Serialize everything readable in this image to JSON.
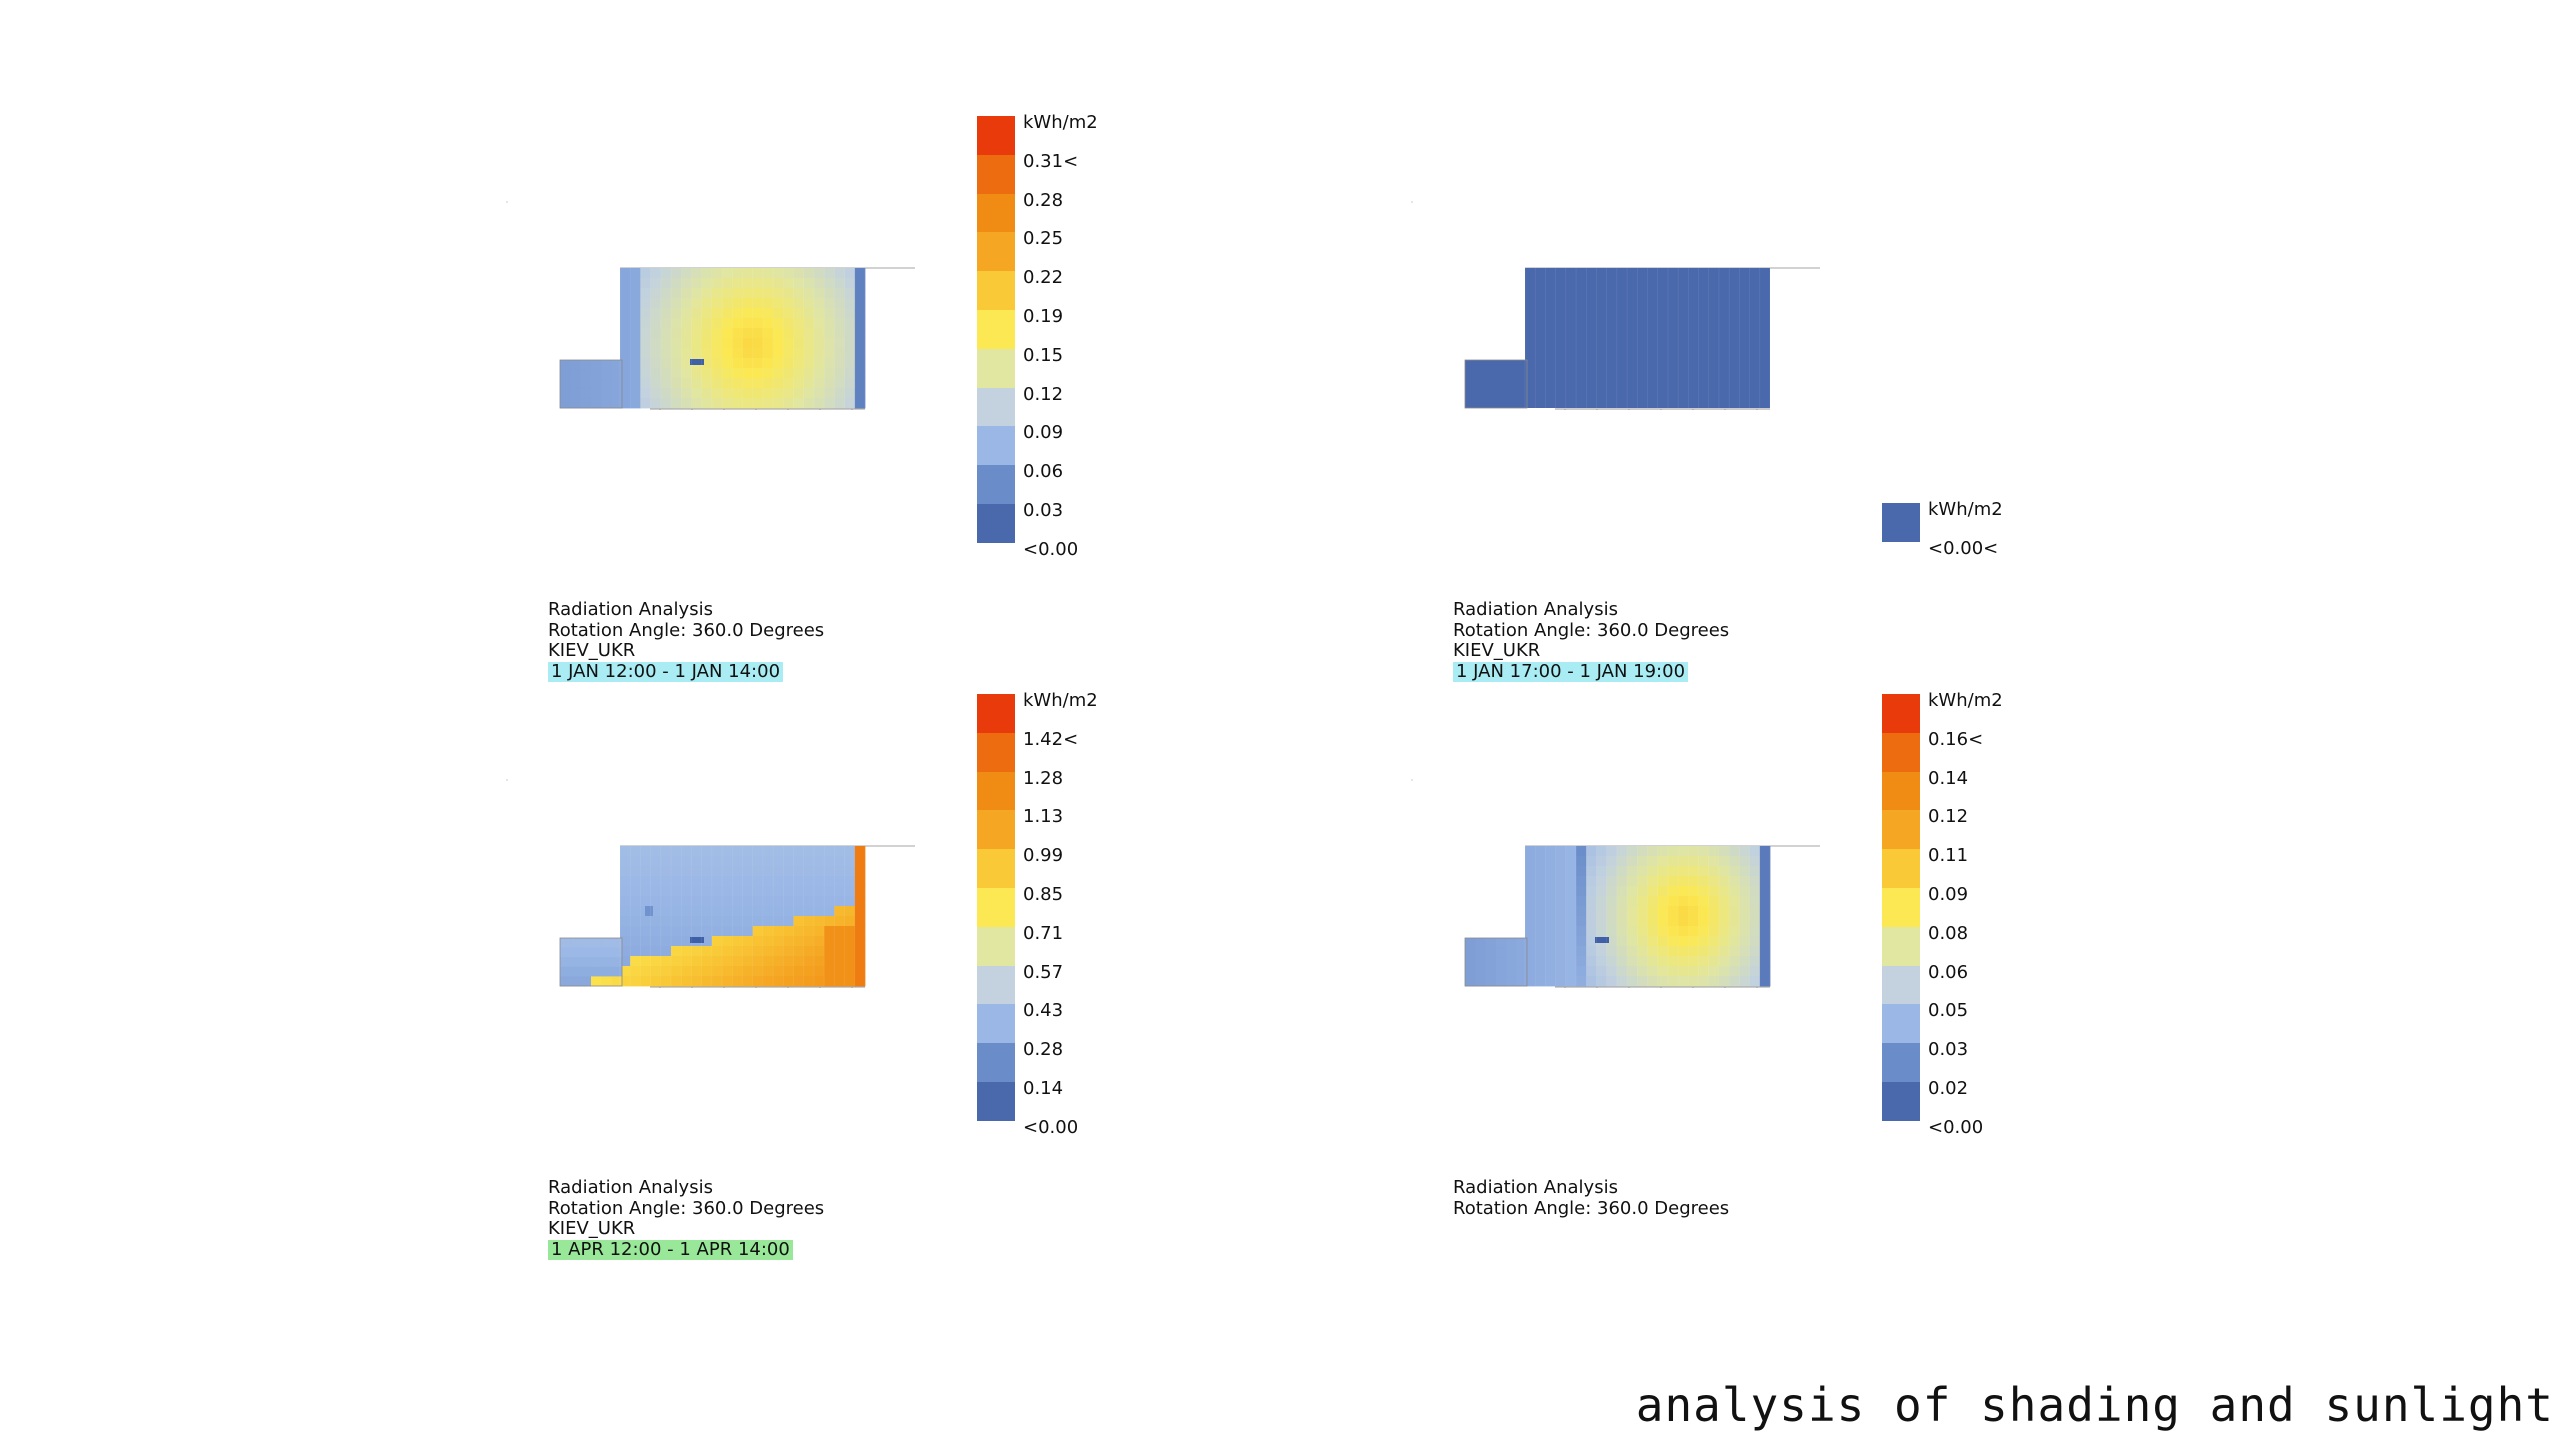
{
  "palette": {
    "scale": [
      "#4a68ac",
      "#6a8cc9",
      "#9ab7e6",
      "#c3d2de",
      "#e1e6a0",
      "#fbe852",
      "#f9c937",
      "#f5a623",
      "#f08c14",
      "#ec6c0f",
      "#e93a0c"
    ],
    "base_blue": "#4a68ac",
    "mid_blue": "#86a7db",
    "yellow": "#f3e04d",
    "orange": "#ee8c1c",
    "highlight_cyan": "#a9ecf3",
    "highlight_green": "#99e899"
  },
  "panels": [
    {
      "id": "jan-midday",
      "legend": {
        "unit": "kWh/m2",
        "labels": [
          "0.31<",
          "0.28",
          "0.25",
          "0.22",
          "0.19",
          "0.15",
          "0.12",
          "0.09",
          "0.06",
          "0.03",
          "<0.00"
        ],
        "steps": 11
      },
      "caption": {
        "title": "Radiation Analysis",
        "rotation": "Rotation Angle: 360.0 Degrees",
        "location": "KIEV_UKR",
        "period": "1 JAN 12:00 - 1 JAN 14:00",
        "period_highlight": "#a9ecf3"
      },
      "pattern": "jan"
    },
    {
      "id": "jan-evening",
      "legend": {
        "unit": "kWh/m2",
        "labels": [
          "<0.00<"
        ],
        "steps": 1
      },
      "caption": {
        "title": "Radiation Analysis",
        "rotation": "Rotation Angle: 360.0 Degrees",
        "location": "KIEV_UKR",
        "period": "1 JAN 17:00 - 1 JAN 19:00",
        "period_highlight": "#a9ecf3"
      },
      "pattern": "flat"
    },
    {
      "id": "apr-midday",
      "legend": {
        "unit": "kWh/m2",
        "labels": [
          "1.42<",
          "1.28",
          "1.13",
          "0.99",
          "0.85",
          "0.71",
          "0.57",
          "0.43",
          "0.28",
          "0.14",
          "<0.00"
        ],
        "steps": 11
      },
      "caption": {
        "title": "Radiation Analysis",
        "rotation": "Rotation Angle: 360.0 Degrees",
        "location": "KIEV_UKR",
        "period": "1 APR 12:00 - 1 APR 14:00",
        "period_highlight": "#99e899"
      },
      "pattern": "apr"
    },
    {
      "id": "panel-4",
      "legend": {
        "unit": "kWh/m2",
        "labels": [
          "0.16<",
          "0.14",
          "0.12",
          "0.11",
          "0.09",
          "0.08",
          "0.06",
          "0.05",
          "0.03",
          "0.02",
          "<0.00"
        ],
        "steps": 11
      },
      "caption": {
        "title": "Radiation Analysis",
        "rotation": "Rotation Angle: 360.0 Degrees",
        "location": "",
        "period": "",
        "period_highlight": ""
      },
      "pattern": "p4"
    }
  ],
  "footer": {
    "title": "analysis of shading and sunlight"
  }
}
